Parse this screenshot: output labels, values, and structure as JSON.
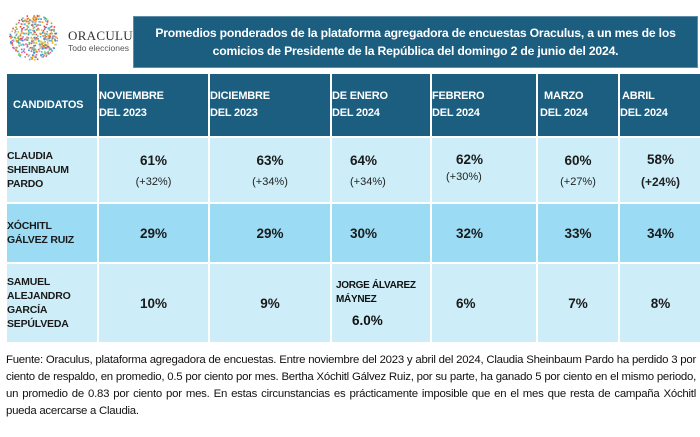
{
  "logo": {
    "name": "ORACULUS",
    "tagline": "Todo elecciones",
    "icon": "dotted-globe-icon"
  },
  "title": "Promedios ponderados de la plataforma agregadora de encuestas Oraculus, a un mes de los comicios de Presidente de la República del domingo 2 de junio del 2024.",
  "colors": {
    "header_bg": "#1b5e80",
    "row_light": "#cdeef9",
    "row_dark": "#9bdbf4"
  },
  "table": {
    "headers": [
      [
        "CANDIDATOS"
      ],
      [
        "NOVIEMBRE",
        "DEL 2023"
      ],
      [
        "DICIEMBRE",
        "DEL 2023"
      ],
      [
        "DE ENERO",
        "DEL 2024"
      ],
      [
        "FEBRERO",
        "DEL 2024"
      ],
      [
        "MARZO",
        "DEL 2024"
      ],
      [
        "ABRIL",
        "DEL 2024"
      ]
    ],
    "rows": [
      {
        "candidate": [
          "CLAUDIA",
          "SHEINBAUM",
          "PARDO"
        ],
        "values": [
          "61%",
          "63%",
          "64%",
          "62%",
          "60%",
          "58%"
        ],
        "differences": [
          "(+32%)",
          "(+34%)",
          "(+34%)",
          "(+30%)",
          "(+27%)",
          "(+24%)"
        ]
      },
      {
        "candidate": [
          "XÓCHITL",
          "GÁLVEZ RUIZ"
        ],
        "values": [
          "29%",
          "29%",
          "30%",
          "32%",
          "33%",
          "34%"
        ]
      },
      {
        "candidate": [
          "SAMUEL",
          "ALEJANDRO",
          "GARCÍA",
          "SEPÚLVEDA"
        ],
        "values": [
          "10%",
          "9%",
          "6.0%",
          "6%",
          "7%",
          "8%"
        ],
        "replacement_note": {
          "month_index": 2,
          "name": [
            "JORGE ÁLVAREZ",
            "MÁYNEZ"
          ]
        }
      }
    ]
  },
  "footnote": "Fuente: Oraculus, plataforma agregadora de encuestas. Entre noviembre del 2023 y abril del 2024, Claudia Sheinbaum Pardo ha perdido 3 por ciento de respaldo, en promedio, 0.5 por ciento por mes. Bertha Xóchitl Gálvez Ruiz, por su parte, ha ganado 5 por ciento en el mismo periodo, un promedio de 0.83 por ciento por mes. En estas circunstancias es prácticamente imposible que en el mes que resta de campaña Xóchitl pueda acercarse a Claudia.",
  "chart_data": {
    "type": "table",
    "title": "Promedios ponderados de la plataforma agregadora de encuestas Oraculus, a un mes de los comicios de Presidente de la República del domingo 2 de junio del 2024.",
    "categories": [
      "Noviembre del 2023",
      "Diciembre del 2023",
      "De enero del 2024",
      "Febrero del 2024",
      "Marzo del 2024",
      "Abril del 2024"
    ],
    "series": [
      {
        "name": "Claudia Sheinbaum Pardo",
        "values": [
          61,
          63,
          64,
          62,
          60,
          58
        ],
        "lead": [
          32,
          34,
          34,
          30,
          27,
          24
        ]
      },
      {
        "name": "Xóchitl Gálvez Ruiz",
        "values": [
          29,
          29,
          30,
          32,
          33,
          34
        ]
      },
      {
        "name": "Samuel Alejandro García Sepúlveda / Jorge Álvarez Máynez",
        "values": [
          10,
          9,
          6.0,
          6,
          7,
          8
        ]
      }
    ],
    "unit": "%"
  }
}
